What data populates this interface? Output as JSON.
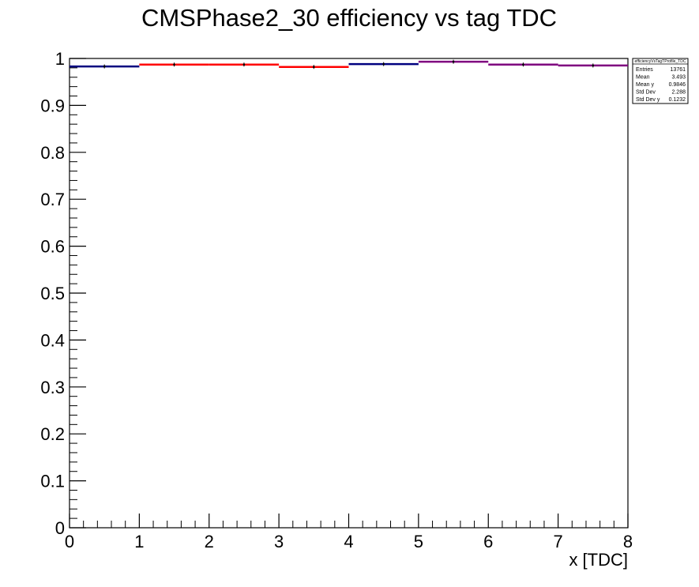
{
  "chart_data": {
    "type": "bar",
    "title": "CMSPhase2_30 efficiency vs tag TDC",
    "xlabel": "x [TDC]",
    "ylabel": "",
    "xlim": [
      0,
      8
    ],
    "ylim": [
      0,
      1
    ],
    "grid": false,
    "x_ticks": [
      "0",
      "1",
      "2",
      "3",
      "4",
      "5",
      "6",
      "7",
      "8"
    ],
    "y_ticks": [
      "0",
      "0.1",
      "0.2",
      "0.3",
      "0.4",
      "0.5",
      "0.6",
      "0.7",
      "0.8",
      "0.9",
      "1"
    ],
    "bins": [
      {
        "xlow": 0,
        "xhigh": 1,
        "value": 0.983,
        "color": "#00007f"
      },
      {
        "xlow": 1,
        "xhigh": 2,
        "value": 0.987,
        "color": "#ff0000"
      },
      {
        "xlow": 2,
        "xhigh": 3,
        "value": 0.987,
        "color": "#ff0000"
      },
      {
        "xlow": 3,
        "xhigh": 4,
        "value": 0.982,
        "color": "#ff0000"
      },
      {
        "xlow": 4,
        "xhigh": 5,
        "value": 0.988,
        "color": "#00007f"
      },
      {
        "xlow": 5,
        "xhigh": 6,
        "value": 0.993,
        "color": "#7f007f"
      },
      {
        "xlow": 6,
        "xhigh": 7,
        "value": 0.987,
        "color": "#7f007f"
      },
      {
        "xlow": 7,
        "xhigh": 8,
        "value": 0.985,
        "color": "#7f007f"
      }
    ]
  },
  "stats_box": {
    "name": "efficiencyVsTagTProfile_TDC",
    "rows": [
      {
        "label": "Entries",
        "value": "13761"
      },
      {
        "label": "Mean",
        "value": "3.493"
      },
      {
        "label": "Mean y",
        "value": "0.9846"
      },
      {
        "label": "Std Dev",
        "value": "2.288"
      },
      {
        "label": "Std Dev y",
        "value": "0.1232"
      }
    ]
  }
}
